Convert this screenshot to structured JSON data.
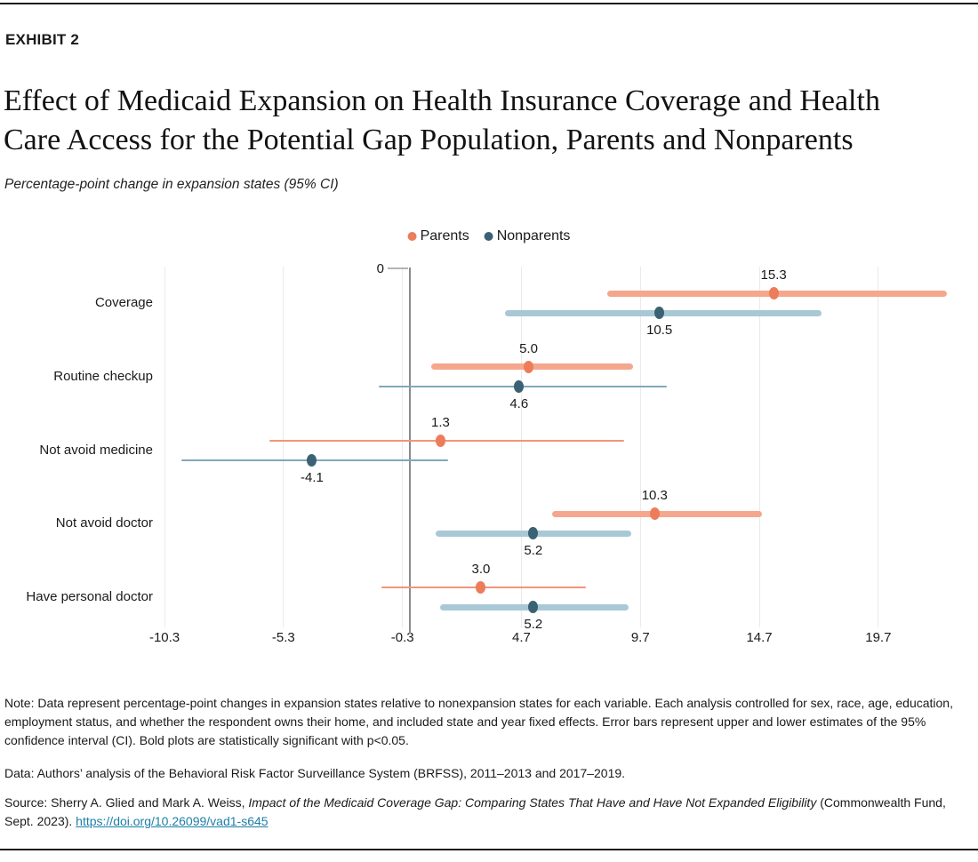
{
  "header": {
    "exhibit_label": "EXHIBIT 2",
    "title_line1": "Effect of Medicaid Expansion on Health Insurance Coverage and Health",
    "title_line2": "Care Access for the Potential Gap Population, Parents and Nonparents",
    "subtitle": "Percentage-point change in expansion states (95% CI)"
  },
  "chart_data": {
    "type": "scatter",
    "subtype": "dot-plot-with-95ci-error-bars",
    "categories": [
      "Coverage",
      "Routine checkup",
      "Not avoid medicine",
      "Not avoid doctor",
      "Have personal doctor"
    ],
    "series": [
      {
        "name": "Parents",
        "values": [
          15.3,
          5.0,
          1.3,
          10.3,
          3.0
        ],
        "labels": [
          "15.3",
          "5.0",
          "1.3",
          "10.3",
          "3.0"
        ],
        "ci_low": [
          8.3,
          0.9,
          -5.9,
          6.0,
          -1.2
        ],
        "ci_high": [
          22.6,
          9.4,
          9.0,
          14.8,
          7.4
        ],
        "significant": [
          true,
          true,
          false,
          true,
          false
        ]
      },
      {
        "name": "Nonparents",
        "values": [
          10.5,
          4.6,
          -4.1,
          5.2,
          5.2
        ],
        "labels": [
          "10.5",
          "4.6",
          "-4.1",
          "5.2",
          "5.2"
        ],
        "ci_low": [
          4.0,
          -1.3,
          -9.6,
          1.1,
          1.3
        ],
        "ci_high": [
          17.3,
          10.8,
          1.6,
          9.3,
          9.2
        ],
        "significant": [
          true,
          false,
          false,
          true,
          true
        ]
      }
    ],
    "x_ticks": [
      -10.3,
      -5.3,
      -0.3,
      4.7,
      9.7,
      14.7,
      19.7
    ],
    "x_tick_labels": [
      "-10.3",
      "-5.3",
      "-0.3",
      "4.7",
      "9.7",
      "14.7",
      "19.7"
    ],
    "zero_label": "0",
    "xlim": [
      -11.5,
      23.2
    ],
    "grid": "vertical-light",
    "legend_position": "top-center",
    "colors": {
      "parents_dot": "#ed7c5b",
      "parents_line_bold": "#f5a78e",
      "parents_line_thin": "#f29579",
      "nonparents_dot": "#3a6274",
      "nonparents_line_bold": "#a9c8d6",
      "nonparents_line_thin": "#7fa8bc",
      "zero_line": "#8a8a8a",
      "gridline": "#eaeaea"
    }
  },
  "notes": {
    "note_text": "Note: Data represent percentage-point changes in expansion states relative to nonexpansion states for each variable. Each analysis controlled for sex, race, age, education, employment status, and whether the respondent owns their home, and included state and year fixed effects. Error bars represent upper and lower estimates of the 95% confidence interval (CI). Bold plots are statistically significant with p<0.05.",
    "data_text": "Data: Authors’ analysis of the Behavioral Risk Factor Surveillance System (BRFSS), 2011–2013 and 2017–2019.",
    "source_prefix": "Source: Sherry A. Glied and Mark A. Weiss, ",
    "source_title": "Impact of the Medicaid Coverage Gap: Comparing States That Have and Have Not Expanded Eligibility",
    "source_suffix": " (Commonwealth Fund, Sept. 2023). ",
    "source_link": "https://doi.org/10.26099/vad1-s645"
  }
}
